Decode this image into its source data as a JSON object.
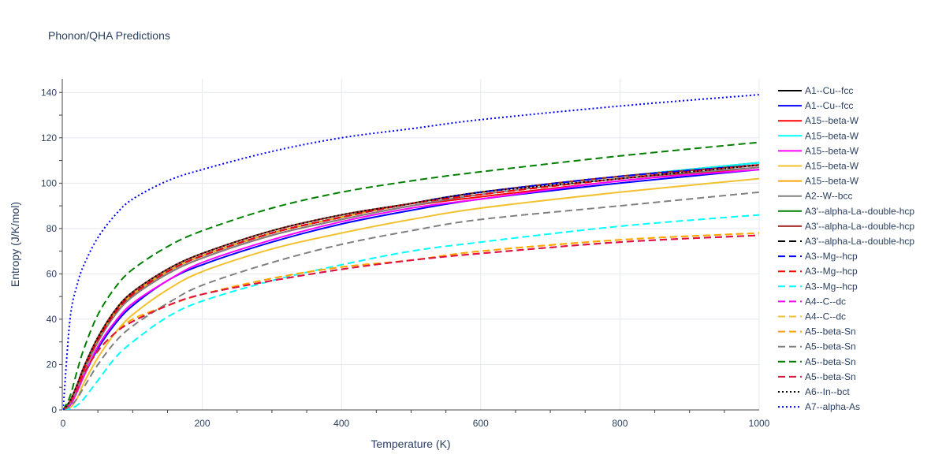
{
  "chart_data": {
    "type": "line",
    "title": "Phonon/QHA Predictions",
    "xlabel": "Temperature (K)",
    "ylabel": "Entropy (J/K/mol)",
    "xlim": [
      0,
      1000
    ],
    "ylim": [
      0,
      146
    ],
    "xticks": [
      0,
      200,
      400,
      600,
      800,
      1000
    ],
    "yticks": [
      0,
      20,
      40,
      60,
      80,
      100,
      120,
      140
    ],
    "grid": true,
    "legend_position": "right",
    "x": [
      0,
      10,
      20,
      30,
      50,
      75,
      100,
      150,
      200,
      300,
      400,
      500,
      600,
      800,
      1000
    ],
    "series": [
      {
        "name": "A1--Cu--fcc",
        "color": "#000000",
        "dash": "solid",
        "values": [
          0,
          3,
          10,
          18,
          31,
          43,
          51,
          61,
          68,
          78,
          85,
          91,
          96,
          103,
          109
        ]
      },
      {
        "name": "A1--Cu--fcc",
        "color": "#0000ff",
        "dash": "solid",
        "values": [
          0,
          2,
          8,
          15,
          27,
          38,
          46,
          57,
          64,
          74,
          82,
          88,
          93,
          100,
          106
        ]
      },
      {
        "name": "A15--beta-W",
        "color": "#ff0000",
        "dash": "solid",
        "values": [
          0,
          3,
          9,
          17,
          30,
          42,
          50,
          60,
          67,
          77,
          84,
          90,
          94,
          101,
          107
        ]
      },
      {
        "name": "A15--beta-W",
        "color": "#00ffff",
        "dash": "solid",
        "values": [
          0,
          3,
          10,
          18,
          31,
          43,
          51,
          61,
          68,
          78,
          85,
          91,
          96,
          103,
          109
        ]
      },
      {
        "name": "A15--beta-W",
        "color": "#ff00ff",
        "dash": "solid",
        "values": [
          0,
          2,
          8,
          15,
          28,
          39,
          47,
          57,
          65,
          75,
          83,
          89,
          93,
          101,
          106
        ]
      },
      {
        "name": "A15--beta-W",
        "color": "#f2c12e",
        "dash": "solid",
        "values": [
          0,
          1,
          5,
          12,
          23,
          34,
          42,
          53,
          61,
          71,
          78,
          84,
          89,
          96,
          102
        ]
      },
      {
        "name": "A15--beta-W",
        "color": "#ffa500",
        "dash": "solid",
        "values": [
          0,
          3,
          10,
          18,
          31,
          43,
          51,
          61,
          68,
          78,
          85,
          91,
          96,
          103,
          108
        ]
      },
      {
        "name": "A2--W--bcc",
        "color": "#808080",
        "dash": "solid",
        "values": [
          0,
          3,
          9,
          17,
          30,
          42,
          50,
          60,
          67,
          77,
          84,
          90,
          95,
          102,
          107
        ]
      },
      {
        "name": "A3'--alpha-La--double-hcp",
        "color": "#008000",
        "dash": "solid",
        "values": [
          0,
          4,
          11,
          19,
          32,
          44,
          52,
          62,
          69,
          79,
          86,
          91,
          96,
          103,
          108
        ]
      },
      {
        "name": "A3'--alpha-La--double-hcp",
        "color": "#a52a2a",
        "dash": "solid",
        "values": [
          0,
          4,
          11,
          19,
          32,
          44,
          52,
          62,
          69,
          79,
          86,
          91,
          96,
          103,
          108
        ]
      },
      {
        "name": "A3'--alpha-La--double-hcp",
        "color": "#000000",
        "dash": "dash",
        "values": [
          0,
          3,
          10,
          18,
          31,
          43,
          51,
          61,
          68,
          78,
          85,
          91,
          95,
          102,
          108
        ]
      },
      {
        "name": "A3--Mg--hcp",
        "color": "#0000ff",
        "dash": "dash",
        "values": [
          0,
          3,
          10,
          18,
          31,
          43,
          51,
          61,
          68,
          78,
          85,
          91,
          96,
          103,
          108
        ]
      },
      {
        "name": "A3--Mg--hcp",
        "color": "#ff0000",
        "dash": "dash",
        "values": [
          0,
          3,
          10,
          18,
          31,
          43,
          51,
          61,
          68,
          78,
          85,
          91,
          95,
          102,
          108
        ]
      },
      {
        "name": "A3--Mg--hcp",
        "color": "#00ffff",
        "dash": "dash",
        "values": [
          0,
          0.5,
          2,
          5,
          13,
          23,
          30,
          41,
          48,
          57,
          64,
          70,
          74,
          81,
          86
        ]
      },
      {
        "name": "A4--C--dc",
        "color": "#ff00ff",
        "dash": "dash",
        "values": [
          0,
          3,
          9,
          16,
          26,
          34,
          39,
          46,
          51,
          57,
          62,
          66,
          69,
          74,
          77
        ]
      },
      {
        "name": "A4--C--dc",
        "color": "#f2c12e",
        "dash": "dash",
        "values": [
          0,
          3,
          9,
          16,
          26,
          34,
          40,
          46,
          51,
          58,
          63,
          66,
          70,
          75,
          78
        ]
      },
      {
        "name": "A5--beta-Sn",
        "color": "#ffa500",
        "dash": "dash",
        "values": [
          0,
          3,
          9,
          16,
          26,
          34,
          40,
          46,
          51,
          58,
          63,
          66,
          70,
          75,
          78
        ]
      },
      {
        "name": "A5--beta-Sn",
        "color": "#808080",
        "dash": "dash",
        "values": [
          0,
          1.5,
          5,
          10,
          20,
          30,
          37,
          47,
          55,
          65,
          73,
          79,
          84,
          90,
          96
        ]
      },
      {
        "name": "A5--beta-Sn",
        "color": "#008000",
        "dash": "dash",
        "values": [
          0,
          6,
          17,
          27,
          42,
          54,
          62,
          72,
          79,
          89,
          96,
          101,
          105,
          112,
          118
        ]
      },
      {
        "name": "A5--beta-Sn",
        "color": "#dc143c",
        "dash": "dash",
        "values": [
          0,
          3,
          9,
          16,
          26,
          34,
          39,
          46,
          51,
          57,
          62,
          66,
          69,
          74,
          77
        ]
      },
      {
        "name": "A6--In--bct",
        "color": "#000000",
        "dash": "dot",
        "values": [
          0,
          4,
          11,
          19,
          32,
          44,
          52,
          62,
          69,
          79,
          86,
          91,
          96,
          102,
          108
        ]
      },
      {
        "name": "A7--alpha-As",
        "color": "#0000ff",
        "dash": "dot",
        "values": [
          0,
          40,
          55,
          64,
          76,
          86,
          93,
          101,
          106,
          114,
          120,
          124,
          128,
          134,
          139
        ]
      }
    ]
  }
}
